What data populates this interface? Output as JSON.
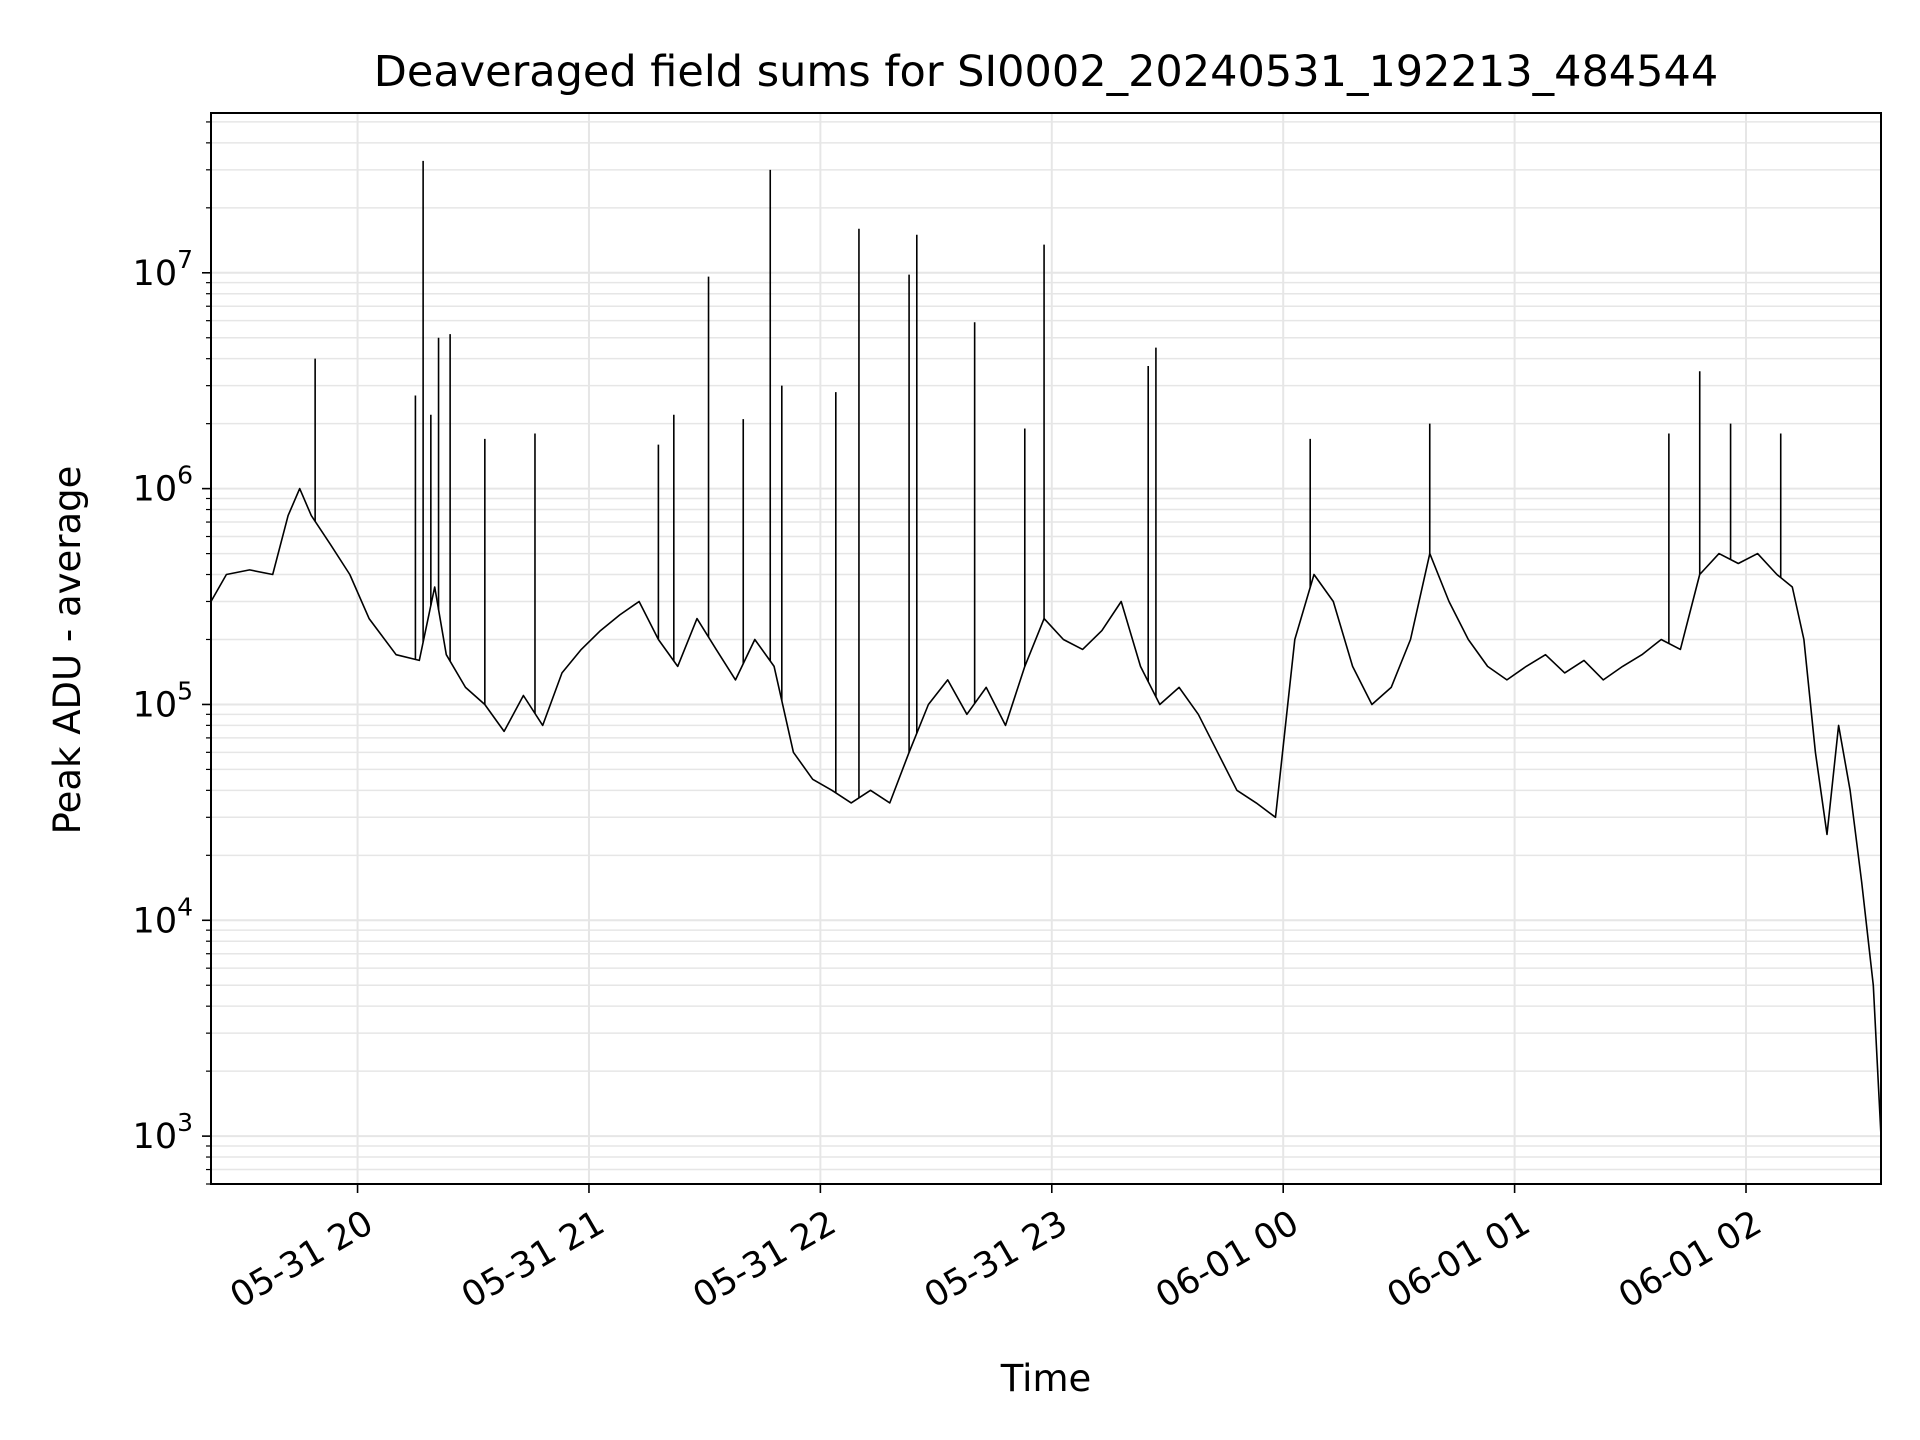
{
  "chart_data": {
    "type": "line",
    "title": "Deaveraged field sums for SI0002_20240531_192213_484544",
    "xlabel": "Time",
    "ylabel": "Peak ADU - average",
    "yscale": "log",
    "grid": true,
    "line_color": "#000000",
    "grid_color": "#e6e6e6",
    "xlim": [
      "2024-05-31 19:22",
      "2024-06-01 02:35"
    ],
    "ylim": [
      600,
      55000000
    ],
    "x_ticks": [
      {
        "t": "2024-05-31 20:00",
        "label": "05-31 20"
      },
      {
        "t": "2024-05-31 21:00",
        "label": "05-31 21"
      },
      {
        "t": "2024-05-31 22:00",
        "label": "05-31 22"
      },
      {
        "t": "2024-05-31 23:00",
        "label": "05-31 23"
      },
      {
        "t": "2024-06-01 00:00",
        "label": "06-01 00"
      },
      {
        "t": "2024-06-01 01:00",
        "label": "06-01 01"
      },
      {
        "t": "2024-06-01 02:00",
        "label": "06-01 02"
      }
    ],
    "y_ticks": [
      {
        "v": 1000,
        "base": "10",
        "exp": "3"
      },
      {
        "v": 10000,
        "base": "10",
        "exp": "4"
      },
      {
        "v": 100000,
        "base": "10",
        "exp": "5"
      },
      {
        "v": 1000000,
        "base": "10",
        "exp": "6"
      },
      {
        "v": 10000000,
        "base": "10",
        "exp": "7"
      }
    ],
    "series": [
      {
        "points": [
          [
            "2024-05-31 19:22",
            300000
          ],
          [
            "2024-05-31 19:26",
            400000
          ],
          [
            "2024-05-31 19:32",
            420000
          ],
          [
            "2024-05-31 19:38",
            400000
          ],
          [
            "2024-05-31 19:42",
            750000
          ],
          [
            "2024-05-31 19:45",
            1000000
          ],
          [
            "2024-05-31 19:48",
            750000
          ],
          [
            "2024-05-31 19:53",
            550000
          ],
          [
            "2024-05-31 19:58",
            400000
          ],
          [
            "2024-05-31 20:03",
            250000
          ],
          [
            "2024-05-31 20:10",
            170000
          ],
          [
            "2024-05-31 20:16",
            160000
          ],
          [
            "2024-05-31 20:20",
            350000
          ],
          [
            "2024-05-31 20:23",
            170000
          ],
          [
            "2024-05-31 20:28",
            120000
          ],
          [
            "2024-05-31 20:33",
            100000
          ],
          [
            "2024-05-31 20:38",
            75000
          ],
          [
            "2024-05-31 20:43",
            110000
          ],
          [
            "2024-05-31 20:48",
            80000
          ],
          [
            "2024-05-31 20:53",
            140000
          ],
          [
            "2024-05-31 20:58",
            180000
          ],
          [
            "2024-05-31 21:03",
            220000
          ],
          [
            "2024-05-31 21:08",
            260000
          ],
          [
            "2024-05-31 21:13",
            300000
          ],
          [
            "2024-05-31 21:18",
            200000
          ],
          [
            "2024-05-31 21:23",
            150000
          ],
          [
            "2024-05-31 21:28",
            250000
          ],
          [
            "2024-05-31 21:33",
            180000
          ],
          [
            "2024-05-31 21:38",
            130000
          ],
          [
            "2024-05-31 21:43",
            200000
          ],
          [
            "2024-05-31 21:48",
            150000
          ],
          [
            "2024-05-31 21:53",
            60000
          ],
          [
            "2024-05-31 21:58",
            45000
          ],
          [
            "2024-05-31 22:03",
            40000
          ],
          [
            "2024-05-31 22:08",
            35000
          ],
          [
            "2024-05-31 22:13",
            40000
          ],
          [
            "2024-05-31 22:18",
            35000
          ],
          [
            "2024-05-31 22:23",
            60000
          ],
          [
            "2024-05-31 22:28",
            100000
          ],
          [
            "2024-05-31 22:33",
            130000
          ],
          [
            "2024-05-31 22:38",
            90000
          ],
          [
            "2024-05-31 22:43",
            120000
          ],
          [
            "2024-05-31 22:48",
            80000
          ],
          [
            "2024-05-31 22:53",
            150000
          ],
          [
            "2024-05-31 22:58",
            250000
          ],
          [
            "2024-05-31 23:03",
            200000
          ],
          [
            "2024-05-31 23:08",
            180000
          ],
          [
            "2024-05-31 23:13",
            220000
          ],
          [
            "2024-05-31 23:18",
            300000
          ],
          [
            "2024-05-31 23:23",
            150000
          ],
          [
            "2024-05-31 23:28",
            100000
          ],
          [
            "2024-05-31 23:33",
            120000
          ],
          [
            "2024-05-31 23:38",
            90000
          ],
          [
            "2024-05-31 23:43",
            60000
          ],
          [
            "2024-05-31 23:48",
            40000
          ],
          [
            "2024-05-31 23:53",
            35000
          ],
          [
            "2024-05-31 23:58",
            30000
          ],
          [
            "2024-06-01 00:03",
            200000
          ],
          [
            "2024-06-01 00:08",
            400000
          ],
          [
            "2024-06-01 00:13",
            300000
          ],
          [
            "2024-06-01 00:18",
            150000
          ],
          [
            "2024-06-01 00:23",
            100000
          ],
          [
            "2024-06-01 00:28",
            120000
          ],
          [
            "2024-06-01 00:33",
            200000
          ],
          [
            "2024-06-01 00:38",
            500000
          ],
          [
            "2024-06-01 00:43",
            300000
          ],
          [
            "2024-06-01 00:48",
            200000
          ],
          [
            "2024-06-01 00:53",
            150000
          ],
          [
            "2024-06-01 00:58",
            130000
          ],
          [
            "2024-06-01 01:03",
            150000
          ],
          [
            "2024-06-01 01:08",
            170000
          ],
          [
            "2024-06-01 01:13",
            140000
          ],
          [
            "2024-06-01 01:18",
            160000
          ],
          [
            "2024-06-01 01:23",
            130000
          ],
          [
            "2024-06-01 01:28",
            150000
          ],
          [
            "2024-06-01 01:33",
            170000
          ],
          [
            "2024-06-01 01:38",
            200000
          ],
          [
            "2024-06-01 01:43",
            180000
          ],
          [
            "2024-06-01 01:48",
            400000
          ],
          [
            "2024-06-01 01:53",
            500000
          ],
          [
            "2024-06-01 01:58",
            450000
          ],
          [
            "2024-06-01 02:03",
            500000
          ],
          [
            "2024-06-01 02:08",
            400000
          ],
          [
            "2024-06-01 02:12",
            350000
          ],
          [
            "2024-06-01 02:15",
            200000
          ],
          [
            "2024-06-01 02:18",
            60000
          ],
          [
            "2024-06-01 02:21",
            25000
          ],
          [
            "2024-06-01 02:24",
            80000
          ],
          [
            "2024-06-01 02:27",
            40000
          ],
          [
            "2024-06-01 02:30",
            15000
          ],
          [
            "2024-06-01 02:33",
            5000
          ],
          [
            "2024-06-01 02:35",
            1000
          ]
        ],
        "spikes": [
          [
            "2024-05-31 19:49",
            4000000
          ],
          [
            "2024-05-31 20:15",
            2700000
          ],
          [
            "2024-05-31 20:17",
            33000000
          ],
          [
            "2024-05-31 20:19",
            2200000
          ],
          [
            "2024-05-31 20:21",
            5000000
          ],
          [
            "2024-05-31 20:24",
            5200000
          ],
          [
            "2024-05-31 20:33",
            1700000
          ],
          [
            "2024-05-31 20:46",
            1800000
          ],
          [
            "2024-05-31 21:18",
            1600000
          ],
          [
            "2024-05-31 21:22",
            2200000
          ],
          [
            "2024-05-31 21:31",
            9600000
          ],
          [
            "2024-05-31 21:40",
            2100000
          ],
          [
            "2024-05-31 21:47",
            30000000
          ],
          [
            "2024-05-31 21:50",
            3000000
          ],
          [
            "2024-05-31 22:04",
            2800000
          ],
          [
            "2024-05-31 22:10",
            16000000
          ],
          [
            "2024-05-31 22:23",
            9800000
          ],
          [
            "2024-05-31 22:25",
            15000000
          ],
          [
            "2024-05-31 22:40",
            5900000
          ],
          [
            "2024-05-31 22:53",
            1900000
          ],
          [
            "2024-05-31 22:58",
            13500000
          ],
          [
            "2024-05-31 23:25",
            3700000
          ],
          [
            "2024-05-31 23:27",
            4500000
          ],
          [
            "2024-06-01 00:07",
            1700000
          ],
          [
            "2024-06-01 00:38",
            2000000
          ],
          [
            "2024-06-01 01:40",
            1800000
          ],
          [
            "2024-06-01 01:48",
            3500000
          ],
          [
            "2024-06-01 01:56",
            2000000
          ],
          [
            "2024-06-01 02:09",
            1800000
          ]
        ]
      }
    ]
  }
}
